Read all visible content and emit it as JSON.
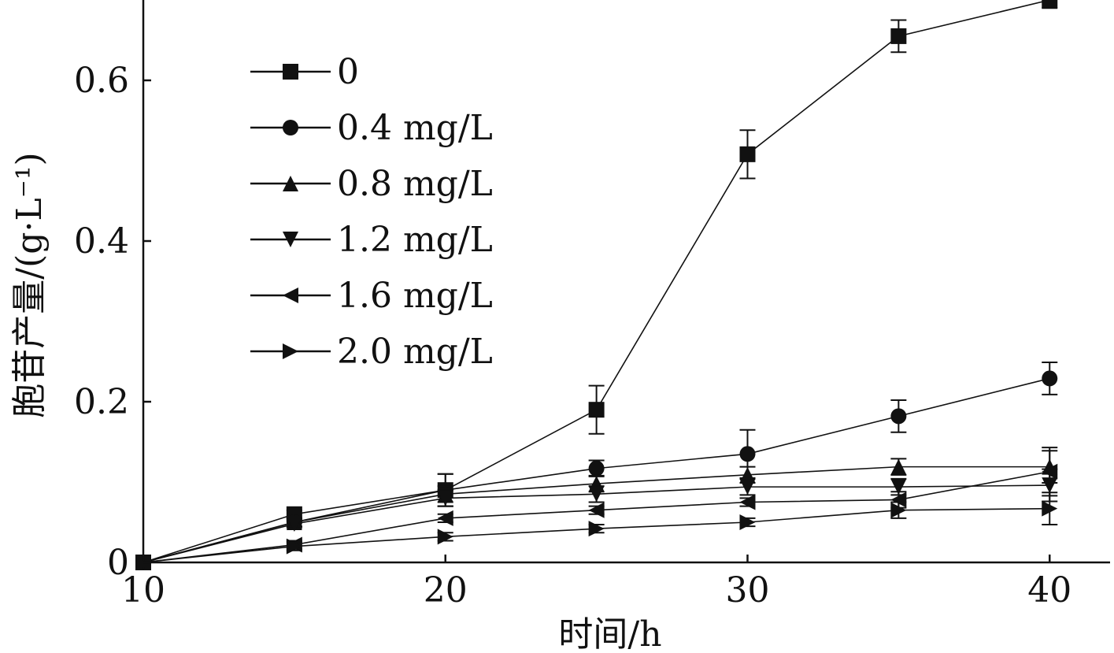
{
  "chart_data": {
    "type": "line",
    "xlabel": "时间/h",
    "ylabel": "胞苷产量/(g·L⁻¹)",
    "xlim": [
      10,
      42
    ],
    "ylim": [
      0,
      0.7
    ],
    "xticks": [
      "10",
      "20",
      "30",
      "40"
    ],
    "yticks": [
      "0",
      "0.2",
      "0.4",
      "0.6"
    ],
    "legend_position": "top-left",
    "grid": false,
    "x": [
      10,
      15,
      20,
      25,
      30,
      35,
      40
    ],
    "series": [
      {
        "name": "0",
        "marker": "square",
        "values": [
          0,
          0.06,
          0.09,
          0.19,
          0.508,
          0.655,
          0.7
        ],
        "errors": [
          0,
          0.005,
          0.02,
          0.03,
          0.03,
          0.02,
          0.01
        ]
      },
      {
        "name": "0.4 mg/L",
        "marker": "circle",
        "values": [
          0,
          0.05,
          0.09,
          0.117,
          0.135,
          0.182,
          0.229
        ],
        "errors": [
          0,
          0.005,
          0.02,
          0.01,
          0.03,
          0.02,
          0.02
        ]
      },
      {
        "name": "0.8 mg/L",
        "marker": "triangle-up",
        "values": [
          0,
          0.05,
          0.085,
          0.098,
          0.109,
          0.119,
          0.119
        ],
        "errors": [
          0,
          0.005,
          0.01,
          0.01,
          0.01,
          0.01,
          0.02
        ]
      },
      {
        "name": "1.2 mg/L",
        "marker": "triangle-down",
        "values": [
          0,
          0.048,
          0.08,
          0.085,
          0.094,
          0.094,
          0.096
        ],
        "errors": [
          0,
          0.005,
          0.01,
          0.01,
          0.01,
          0.01,
          0.02
        ]
      },
      {
        "name": "1.6 mg/L",
        "marker": "triangle-left",
        "values": [
          0,
          0.022,
          0.055,
          0.065,
          0.075,
          0.078,
          0.113
        ],
        "errors": [
          0,
          0.005,
          0.005,
          0.005,
          0.005,
          0.01,
          0.03
        ]
      },
      {
        "name": "2.0 mg/L",
        "marker": "triangle-right",
        "values": [
          0,
          0.02,
          0.032,
          0.042,
          0.05,
          0.065,
          0.067
        ],
        "errors": [
          0,
          0.005,
          0.005,
          0.005,
          0.005,
          0.01,
          0.02
        ]
      }
    ]
  }
}
